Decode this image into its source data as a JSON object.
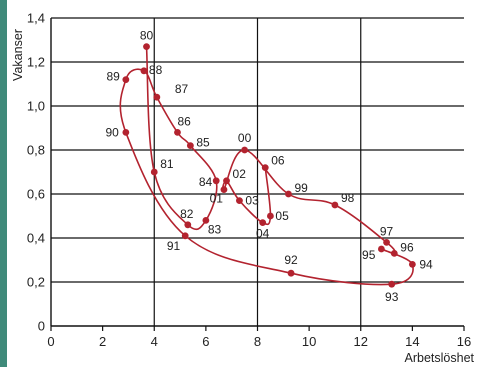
{
  "chart_data": {
    "type": "scatter",
    "ylabel": "Vakanser",
    "xlabel": "Arbetslöshet",
    "xlim": [
      0,
      16
    ],
    "ylim": [
      0,
      1.4
    ],
    "x_ticks": [
      "0",
      "2",
      "4",
      "6",
      "8",
      "10",
      "12",
      "14",
      "16"
    ],
    "y_ticks": [
      "0",
      "0,2",
      "0,4",
      "0,6",
      "0,8",
      "1,0",
      "1,2",
      "1,4"
    ],
    "grid": true,
    "connected": true,
    "colors": {
      "series": "#b3232f",
      "grid": "#111111"
    },
    "points": [
      {
        "label": "80",
        "x": 3.7,
        "y": 1.27
      },
      {
        "label": "81",
        "x": 4.0,
        "y": 0.7
      },
      {
        "label": "82",
        "x": 5.3,
        "y": 0.46
      },
      {
        "label": "83",
        "x": 6.0,
        "y": 0.48
      },
      {
        "label": "84",
        "x": 6.4,
        "y": 0.66
      },
      {
        "label": "85",
        "x": 5.4,
        "y": 0.82
      },
      {
        "label": "86",
        "x": 4.9,
        "y": 0.88
      },
      {
        "label": "87",
        "x": 4.1,
        "y": 1.04
      },
      {
        "label": "88",
        "x": 3.6,
        "y": 1.16
      },
      {
        "label": "89",
        "x": 2.9,
        "y": 1.12
      },
      {
        "label": "90",
        "x": 2.9,
        "y": 0.88
      },
      {
        "label": "91",
        "x": 5.2,
        "y": 0.41
      },
      {
        "label": "92",
        "x": 9.3,
        "y": 0.24
      },
      {
        "label": "93",
        "x": 13.2,
        "y": 0.19
      },
      {
        "label": "94",
        "x": 14.0,
        "y": 0.28
      },
      {
        "label": "95",
        "x": 12.8,
        "y": 0.35
      },
      {
        "label": "96",
        "x": 13.3,
        "y": 0.33
      },
      {
        "label": "97",
        "x": 13.0,
        "y": 0.38
      },
      {
        "label": "98",
        "x": 11.0,
        "y": 0.55
      },
      {
        "label": "99",
        "x": 9.2,
        "y": 0.6
      },
      {
        "label": "00",
        "x": 7.5,
        "y": 0.8
      },
      {
        "label": "01",
        "x": 6.7,
        "y": 0.62
      },
      {
        "label": "02",
        "x": 6.8,
        "y": 0.66
      },
      {
        "label": "03",
        "x": 7.3,
        "y": 0.57
      },
      {
        "label": "04",
        "x": 8.2,
        "y": 0.47
      },
      {
        "label": "05",
        "x": 8.5,
        "y": 0.5
      },
      {
        "label": "06",
        "x": 8.3,
        "y": 0.72
      }
    ]
  }
}
